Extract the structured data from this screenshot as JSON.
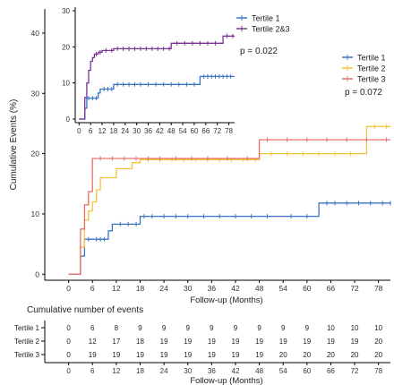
{
  "chart_data": [
    {
      "type": "line",
      "step": true,
      "xlabel": "Follow-up (Months)",
      "ylabel": "Cumulative Events (%)",
      "xlim": [
        -6,
        81
      ],
      "ylim": [
        -1,
        44
      ],
      "xticks": [
        0,
        6,
        12,
        18,
        24,
        30,
        36,
        42,
        48,
        54,
        60,
        66,
        72,
        78
      ],
      "yticks": [
        0,
        10,
        20,
        30,
        40
      ],
      "legend_position": "top-right",
      "pvalue": "p = 0.072",
      "series": [
        {
          "name": "Tertile 1",
          "color": "#3A75C4",
          "x": [
            0,
            3,
            4,
            6,
            10,
            11,
            18,
            63,
            81
          ],
          "y": [
            0,
            3,
            5.8,
            5.8,
            7.2,
            8.3,
            9.6,
            11.8,
            11.8
          ],
          "censor_x": [
            4,
            5,
            7,
            8,
            9,
            13,
            15,
            17,
            19,
            21,
            24,
            27,
            30,
            34,
            38,
            42,
            46,
            50,
            56,
            60,
            65,
            67,
            70,
            73,
            76,
            79,
            81
          ]
        },
        {
          "name": "Tertile 2",
          "color": "#F5C43C",
          "x": [
            0,
            3,
            4,
            5,
            6,
            7,
            8,
            12,
            16,
            18,
            48,
            75,
            81
          ],
          "y": [
            0,
            4.5,
            9,
            10.5,
            12,
            14,
            16,
            17.5,
            18.5,
            19,
            20,
            24.5,
            24.5
          ],
          "censor_x": [
            20,
            23,
            26,
            29,
            32,
            35,
            38,
            41,
            44,
            47,
            51,
            55,
            59,
            63,
            67,
            71,
            77,
            80
          ]
        },
        {
          "name": "Tertile 3",
          "color": "#E8706A",
          "x": [
            0,
            3,
            4,
            5,
            6,
            48,
            81
          ],
          "y": [
            0,
            7.5,
            11.5,
            13.7,
            19.2,
            22.3,
            22.3
          ],
          "censor_x": [
            8,
            11,
            14,
            17,
            20,
            23,
            27,
            31,
            35,
            40,
            45,
            50,
            55,
            60,
            65,
            70,
            75,
            80
          ]
        }
      ]
    },
    {
      "type": "line",
      "step": true,
      "xlim": [
        -2,
        81
      ],
      "ylim": [
        -1,
        31
      ],
      "xticks": [
        0,
        6,
        12,
        18,
        24,
        30,
        36,
        42,
        48,
        54,
        60,
        66,
        72,
        78
      ],
      "yticks": [
        0,
        10,
        20,
        30
      ],
      "legend_position": "top-right",
      "pvalue": "p = 0.022",
      "series": [
        {
          "name": "Tertile 1",
          "color": "#3A75C4",
          "x": [
            0,
            3,
            4,
            6,
            10,
            11,
            18,
            63,
            81
          ],
          "y": [
            0,
            3,
            5.8,
            5.8,
            7.2,
            8.3,
            9.6,
            11.8,
            11.8
          ],
          "censor_x": [
            5,
            7,
            9,
            13,
            15,
            17,
            20,
            23,
            26,
            29,
            32,
            36,
            40,
            44,
            48,
            52,
            56,
            60,
            65,
            67,
            69,
            71,
            73,
            75,
            77,
            79
          ]
        },
        {
          "name": "Tertile 2&3",
          "color": "#7B3294",
          "x": [
            0,
            3,
            4,
            5,
            6,
            7,
            8,
            10,
            12,
            18,
            48,
            75,
            81
          ],
          "y": [
            0,
            6,
            10,
            13.5,
            16,
            17,
            18,
            18.5,
            19,
            19.5,
            21,
            23,
            23
          ],
          "censor_x": [
            9,
            11,
            14,
            17,
            20,
            23,
            26,
            29,
            32,
            35,
            38,
            41,
            44,
            47,
            51,
            55,
            59,
            63,
            67,
            71,
            77,
            80
          ]
        }
      ]
    },
    {
      "type": "table",
      "title": "Cumulative number of events",
      "xlabel": "Follow-up (Months)",
      "columns": [
        0,
        6,
        12,
        18,
        24,
        30,
        36,
        42,
        48,
        54,
        60,
        66,
        72,
        78
      ],
      "rows": [
        {
          "name": "Tertile 1",
          "values": [
            0,
            6,
            8,
            9,
            9,
            9,
            9,
            9,
            9,
            9,
            9,
            10,
            10,
            10
          ]
        },
        {
          "name": "Tertile 2",
          "values": [
            0,
            12,
            17,
            18,
            19,
            19,
            19,
            19,
            19,
            19,
            19,
            19,
            19,
            20
          ]
        },
        {
          "name": "Tertile 3",
          "values": [
            0,
            19,
            19,
            19,
            19,
            19,
            19,
            19,
            19,
            20,
            20,
            20,
            20,
            20
          ]
        }
      ]
    }
  ]
}
